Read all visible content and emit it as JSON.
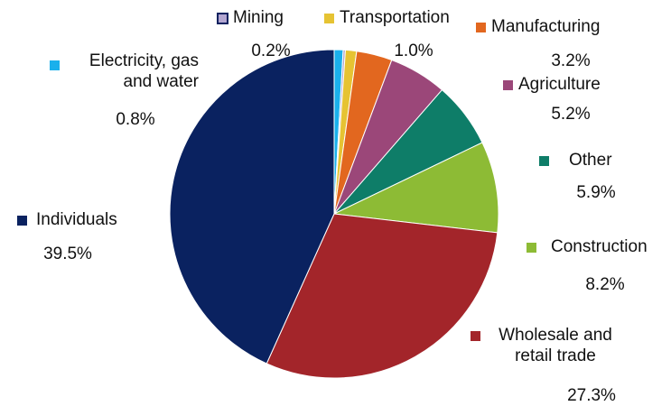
{
  "chart_data": {
    "type": "pie",
    "categories": [
      "Electricity, gas and water",
      "Mining",
      "Transportation",
      "Manufacturing",
      "Agriculture",
      "Other",
      "Construction",
      "Wholesale and retail trade",
      "Individuals"
    ],
    "values": [
      0.8,
      0.2,
      1.0,
      3.2,
      5.2,
      5.9,
      8.2,
      27.3,
      39.5
    ],
    "value_labels": [
      "0.8%",
      "0.2%",
      "1.0%",
      "3.2%",
      "5.2%",
      "5.9%",
      "8.2%",
      "27.3%",
      "39.5%"
    ],
    "colors": [
      "#1ab0ec",
      "#b3a6d1",
      "#e6c333",
      "#e2671f",
      "#9b4779",
      "#0e7d68",
      "#8dbb35",
      "#a3252a",
      "#0a2260"
    ]
  }
}
